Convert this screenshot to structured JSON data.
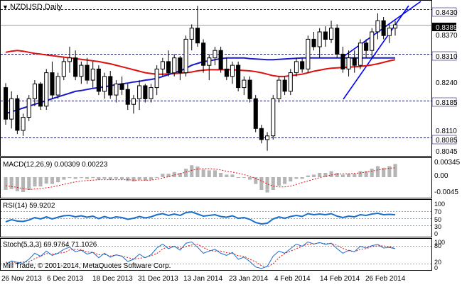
{
  "window": {
    "title": "NZDUSD,Daily",
    "menu_icon": "triangle-down-icon",
    "copyright": "Mill Trade, © 2001-2014, MetaQuotes Software Corp."
  },
  "colors": {
    "bull_candle": "#ffffff",
    "bear_candle": "#000000",
    "ma_fast": "#1a1acc",
    "ma_slow": "#e01010",
    "trend_channel": "#0000ff",
    "rsi_line": "#1a6fcc",
    "macd_signal": "#e01010",
    "stoch_main": "#1a6fcc",
    "stoch_signal": "#e01010",
    "price_tag_bg": "#000000",
    "level_line": "#1a1a6a"
  },
  "main_panel": {
    "price_axis_labels": [
      "0.8430",
      "0.8389",
      "0.8370",
      "0.8310",
      "0.8240",
      "0.8185",
      "0.8110",
      "0.8085",
      "0.8045"
    ],
    "current_price": "0.8389",
    "levels": [
      "0.8430",
      "0.8310",
      "0.8185",
      "0.8085"
    ]
  },
  "macd_panel": {
    "label": "MACD(12,26,9) 0.00309 0.00223",
    "axis_labels": [
      "0.00345",
      "0.00",
      "-0.0045"
    ]
  },
  "rsi_panel": {
    "label": "RSI(14) 59.9202",
    "axis_labels": [
      "100",
      "70",
      "50",
      "30",
      "0"
    ]
  },
  "stoch_panel": {
    "label": "Stoch(5,3,3) 69.9764 71.1026",
    "axis_labels": [
      "100",
      "80",
      "20",
      "0"
    ]
  },
  "x_axis_labels": [
    "26 Nov 2013",
    "6 Dec 2013",
    "18 Dec 2013",
    "31 Dec 2013",
    "13 Jan 2014",
    "23 Jan 2014",
    "4 Feb 2014",
    "14 Feb 2014",
    "26 Feb 2014"
  ],
  "chart_data": {
    "type": "candlestick",
    "ylim": [
      0.804,
      0.845
    ],
    "candles": [
      {
        "o": 0.822,
        "h": 0.8232,
        "l": 0.812,
        "c": 0.8135
      },
      {
        "o": 0.8135,
        "h": 0.821,
        "l": 0.811,
        "c": 0.819
      },
      {
        "o": 0.819,
        "h": 0.82,
        "l": 0.8095,
        "c": 0.8105
      },
      {
        "o": 0.8105,
        "h": 0.815,
        "l": 0.809,
        "c": 0.814
      },
      {
        "o": 0.814,
        "h": 0.82,
        "l": 0.813,
        "c": 0.819
      },
      {
        "o": 0.819,
        "h": 0.824,
        "l": 0.817,
        "c": 0.823
      },
      {
        "o": 0.823,
        "h": 0.8235,
        "l": 0.816,
        "c": 0.817
      },
      {
        "o": 0.817,
        "h": 0.827,
        "l": 0.816,
        "c": 0.826
      },
      {
        "o": 0.826,
        "h": 0.829,
        "l": 0.819,
        "c": 0.82
      },
      {
        "o": 0.82,
        "h": 0.826,
        "l": 0.819,
        "c": 0.825
      },
      {
        "o": 0.825,
        "h": 0.83,
        "l": 0.824,
        "c": 0.829
      },
      {
        "o": 0.829,
        "h": 0.833,
        "l": 0.826,
        "c": 0.83
      },
      {
        "o": 0.83,
        "h": 0.832,
        "l": 0.824,
        "c": 0.825
      },
      {
        "o": 0.825,
        "h": 0.829,
        "l": 0.823,
        "c": 0.828
      },
      {
        "o": 0.828,
        "h": 0.83,
        "l": 0.823,
        "c": 0.824
      },
      {
        "o": 0.824,
        "h": 0.829,
        "l": 0.822,
        "c": 0.827
      },
      {
        "o": 0.827,
        "h": 0.828,
        "l": 0.82,
        "c": 0.821
      },
      {
        "o": 0.821,
        "h": 0.826,
        "l": 0.819,
        "c": 0.825
      },
      {
        "o": 0.825,
        "h": 0.8265,
        "l": 0.819,
        "c": 0.82
      },
      {
        "o": 0.82,
        "h": 0.824,
        "l": 0.818,
        "c": 0.823
      },
      {
        "o": 0.823,
        "h": 0.825,
        "l": 0.82,
        "c": 0.8215
      },
      {
        "o": 0.8215,
        "h": 0.823,
        "l": 0.816,
        "c": 0.8175
      },
      {
        "o": 0.8175,
        "h": 0.82,
        "l": 0.815,
        "c": 0.819
      },
      {
        "o": 0.819,
        "h": 0.824,
        "l": 0.816,
        "c": 0.8225
      },
      {
        "o": 0.8225,
        "h": 0.823,
        "l": 0.818,
        "c": 0.819
      },
      {
        "o": 0.819,
        "h": 0.823,
        "l": 0.818,
        "c": 0.822
      },
      {
        "o": 0.822,
        "h": 0.828,
        "l": 0.82,
        "c": 0.827
      },
      {
        "o": 0.827,
        "h": 0.83,
        "l": 0.825,
        "c": 0.829
      },
      {
        "o": 0.829,
        "h": 0.832,
        "l": 0.825,
        "c": 0.826
      },
      {
        "o": 0.826,
        "h": 0.831,
        "l": 0.825,
        "c": 0.83
      },
      {
        "o": 0.83,
        "h": 0.8305,
        "l": 0.824,
        "c": 0.826
      },
      {
        "o": 0.826,
        "h": 0.836,
        "l": 0.825,
        "c": 0.835
      },
      {
        "o": 0.835,
        "h": 0.839,
        "l": 0.832,
        "c": 0.838
      },
      {
        "o": 0.838,
        "h": 0.844,
        "l": 0.833,
        "c": 0.834
      },
      {
        "o": 0.834,
        "h": 0.835,
        "l": 0.826,
        "c": 0.828
      },
      {
        "o": 0.828,
        "h": 0.831,
        "l": 0.824,
        "c": 0.83
      },
      {
        "o": 0.83,
        "h": 0.833,
        "l": 0.828,
        "c": 0.832
      },
      {
        "o": 0.832,
        "h": 0.833,
        "l": 0.826,
        "c": 0.827
      },
      {
        "o": 0.827,
        "h": 0.83,
        "l": 0.824,
        "c": 0.825
      },
      {
        "o": 0.825,
        "h": 0.829,
        "l": 0.823,
        "c": 0.828
      },
      {
        "o": 0.828,
        "h": 0.829,
        "l": 0.821,
        "c": 0.822
      },
      {
        "o": 0.822,
        "h": 0.825,
        "l": 0.82,
        "c": 0.824
      },
      {
        "o": 0.824,
        "h": 0.825,
        "l": 0.818,
        "c": 0.819
      },
      {
        "o": 0.819,
        "h": 0.82,
        "l": 0.81,
        "c": 0.811
      },
      {
        "o": 0.811,
        "h": 0.812,
        "l": 0.807,
        "c": 0.808
      },
      {
        "o": 0.808,
        "h": 0.81,
        "l": 0.805,
        "c": 0.809
      },
      {
        "o": 0.809,
        "h": 0.82,
        "l": 0.808,
        "c": 0.819
      },
      {
        "o": 0.819,
        "h": 0.825,
        "l": 0.818,
        "c": 0.824
      },
      {
        "o": 0.824,
        "h": 0.825,
        "l": 0.82,
        "c": 0.821
      },
      {
        "o": 0.821,
        "h": 0.827,
        "l": 0.82,
        "c": 0.826
      },
      {
        "o": 0.826,
        "h": 0.83,
        "l": 0.825,
        "c": 0.829
      },
      {
        "o": 0.829,
        "h": 0.83,
        "l": 0.826,
        "c": 0.827
      },
      {
        "o": 0.827,
        "h": 0.836,
        "l": 0.826,
        "c": 0.835
      },
      {
        "o": 0.835,
        "h": 0.837,
        "l": 0.832,
        "c": 0.833
      },
      {
        "o": 0.833,
        "h": 0.838,
        "l": 0.83,
        "c": 0.837
      },
      {
        "o": 0.837,
        "h": 0.8385,
        "l": 0.833,
        "c": 0.835
      },
      {
        "o": 0.835,
        "h": 0.84,
        "l": 0.834,
        "c": 0.838
      },
      {
        "o": 0.838,
        "h": 0.839,
        "l": 0.83,
        "c": 0.831
      },
      {
        "o": 0.831,
        "h": 0.833,
        "l": 0.826,
        "c": 0.827
      },
      {
        "o": 0.827,
        "h": 0.832,
        "l": 0.825,
        "c": 0.83
      },
      {
        "o": 0.83,
        "h": 0.832,
        "l": 0.826,
        "c": 0.828
      },
      {
        "o": 0.828,
        "h": 0.835,
        "l": 0.827,
        "c": 0.834
      },
      {
        "o": 0.834,
        "h": 0.835,
        "l": 0.83,
        "c": 0.832
      },
      {
        "o": 0.832,
        "h": 0.838,
        "l": 0.83,
        "c": 0.837
      },
      {
        "o": 0.837,
        "h": 0.842,
        "l": 0.835,
        "c": 0.84
      },
      {
        "o": 0.84,
        "h": 0.841,
        "l": 0.835,
        "c": 0.836
      },
      {
        "o": 0.836,
        "h": 0.839,
        "l": 0.834,
        "c": 0.838
      },
      {
        "o": 0.838,
        "h": 0.84,
        "l": 0.836,
        "c": 0.8389
      }
    ],
    "ma_fast": [
      0.815,
      0.8155,
      0.816,
      0.8165,
      0.817,
      0.8175,
      0.818,
      0.8185,
      0.819,
      0.8195,
      0.82,
      0.8205,
      0.821,
      0.8212,
      0.8215,
      0.8218,
      0.822,
      0.8222,
      0.8225,
      0.8228,
      0.823,
      0.8232,
      0.8235,
      0.8237,
      0.824,
      0.8242,
      0.8245,
      0.825,
      0.8255,
      0.826,
      0.8265,
      0.8272,
      0.828,
      0.8285,
      0.829,
      0.8292,
      0.8295,
      0.8298,
      0.83,
      0.83,
      0.83,
      0.83,
      0.8298,
      0.8297,
      0.8296,
      0.8295,
      0.8295,
      0.8296,
      0.8297,
      0.8298,
      0.8299,
      0.83,
      0.83,
      0.83,
      0.83,
      0.83,
      0.83,
      0.83,
      0.83,
      0.83,
      0.83,
      0.83,
      0.83,
      0.83,
      0.83,
      0.83,
      0.83,
      0.83
    ],
    "ma_slow": [
      0.8315,
      0.8318,
      0.832,
      0.8318,
      0.8315,
      0.8312,
      0.831,
      0.8308,
      0.8306,
      0.8304,
      0.8302,
      0.83,
      0.8298,
      0.8296,
      0.8294,
      0.8292,
      0.829,
      0.8287,
      0.8284,
      0.828,
      0.8276,
      0.8272,
      0.8268,
      0.8264,
      0.826,
      0.8258,
      0.8256,
      0.8256,
      0.8257,
      0.8258,
      0.8259,
      0.826,
      0.8262,
      0.8265,
      0.8267,
      0.8268,
      0.8268,
      0.8268,
      0.8268,
      0.8268,
      0.8267,
      0.8266,
      0.8265,
      0.8263,
      0.826,
      0.8256,
      0.8252,
      0.825,
      0.825,
      0.8252,
      0.8254,
      0.8256,
      0.826,
      0.8264,
      0.8267,
      0.827,
      0.8272,
      0.8273,
      0.8274,
      0.8275,
      0.8276,
      0.8277,
      0.8279,
      0.8281,
      0.8284,
      0.8288,
      0.8292,
      0.8295
    ],
    "macd": {
      "main_last": 0.00309,
      "signal_last": 0.00223,
      "ylim": [
        -0.0045,
        0.004
      ],
      "histogram": [
        -0.003,
        -0.0028,
        -0.0033,
        -0.0035,
        -0.003,
        -0.0022,
        -0.0022,
        -0.0015,
        -0.0016,
        -0.0012,
        -0.0006,
        -0.0002,
        -0.0004,
        -0.0002,
        -0.0004,
        -0.0002,
        -0.0006,
        -0.0004,
        -0.0006,
        -0.0004,
        -0.0005,
        -0.0009,
        -0.001,
        -0.0006,
        -0.0008,
        -0.0006,
        0.0,
        0.0008,
        0.0008,
        0.0012,
        0.001,
        0.002,
        0.0028,
        0.0025,
        0.0018,
        0.0016,
        0.0016,
        0.001,
        0.0006,
        0.0006,
        0.0,
        0.0,
        -0.0006,
        -0.0016,
        -0.003,
        -0.0036,
        -0.003,
        -0.002,
        -0.0016,
        -0.001,
        -0.0004,
        -0.0004,
        0.0004,
        0.0006,
        0.001,
        0.001,
        0.0014,
        0.001,
        0.0006,
        0.0008,
        0.0008,
        0.0014,
        0.0014,
        0.002,
        0.0026,
        0.0022,
        0.0026,
        0.0031
      ],
      "signal": [
        -0.002,
        -0.0022,
        -0.0024,
        -0.0027,
        -0.0029,
        -0.0028,
        -0.0027,
        -0.0025,
        -0.0023,
        -0.002,
        -0.0017,
        -0.0014,
        -0.0011,
        -0.0009,
        -0.0008,
        -0.0007,
        -0.0006,
        -0.0006,
        -0.0006,
        -0.0006,
        -0.0006,
        -0.0006,
        -0.0007,
        -0.0007,
        -0.0007,
        -0.0007,
        -0.0005,
        -0.0002,
        0.0001,
        0.0005,
        0.0008,
        0.0012,
        0.0016,
        0.0019,
        0.002,
        0.002,
        0.0019,
        0.0017,
        0.0014,
        0.0012,
        0.0009,
        0.0006,
        0.0002,
        -0.0003,
        -0.0009,
        -0.0016,
        -0.0021,
        -0.0023,
        -0.0023,
        -0.0021,
        -0.0017,
        -0.0013,
        -0.0009,
        -0.0005,
        -0.0001,
        0.0002,
        0.0005,
        0.0007,
        0.0008,
        0.0008,
        0.0009,
        0.001,
        0.0012,
        0.0014,
        0.0017,
        0.0019,
        0.0021,
        0.0022
      ]
    },
    "rsi": {
      "last": 59.9202,
      "ylim": [
        0,
        100
      ],
      "levels": [
        70,
        50,
        30
      ],
      "values": [
        40,
        46,
        42,
        41,
        45,
        52,
        48,
        54,
        48,
        53,
        57,
        58,
        54,
        57,
        53,
        56,
        49,
        55,
        50,
        54,
        52,
        47,
        50,
        55,
        51,
        54,
        60,
        63,
        58,
        62,
        58,
        66,
        68,
        62,
        56,
        58,
        60,
        55,
        53,
        57,
        50,
        52,
        47,
        38,
        34,
        36,
        48,
        54,
        50,
        55,
        58,
        55,
        63,
        60,
        62,
        60,
        63,
        56,
        52,
        56,
        54,
        60,
        58,
        62,
        64,
        60,
        61,
        60
      ]
    },
    "stoch": {
      "main_last": 69.9764,
      "signal_last": 71.1026,
      "ylim": [
        0,
        100
      ],
      "levels": [
        80,
        20
      ],
      "main": [
        20,
        30,
        25,
        22,
        35,
        55,
        45,
        62,
        48,
        55,
        68,
        75,
        60,
        65,
        52,
        58,
        40,
        55,
        42,
        50,
        45,
        28,
        35,
        52,
        40,
        50,
        72,
        85,
        70,
        78,
        65,
        88,
        92,
        75,
        55,
        62,
        68,
        55,
        48,
        58,
        35,
        42,
        28,
        10,
        5,
        12,
        45,
        62,
        55,
        70,
        85,
        78,
        92,
        85,
        90,
        84,
        88,
        70,
        55,
        65,
        60,
        78,
        72,
        80,
        84,
        72,
        74,
        70
      ],
      "signal": [
        25,
        26,
        25,
        26,
        27,
        37,
        45,
        54,
        52,
        55,
        57,
        66,
        68,
        67,
        59,
        58,
        50,
        51,
        46,
        49,
        46,
        41,
        36,
        38,
        42,
        47,
        54,
        69,
        76,
        78,
        71,
        77,
        82,
        85,
        74,
        64,
        62,
        62,
        57,
        54,
        47,
        45,
        35,
        27,
        14,
        9,
        21,
        40,
        54,
        62,
        70,
        78,
        85,
        85,
        89,
        86,
        87,
        81,
        71,
        63,
        60,
        68,
        70,
        77,
        79,
        79,
        77,
        71
      ]
    }
  }
}
